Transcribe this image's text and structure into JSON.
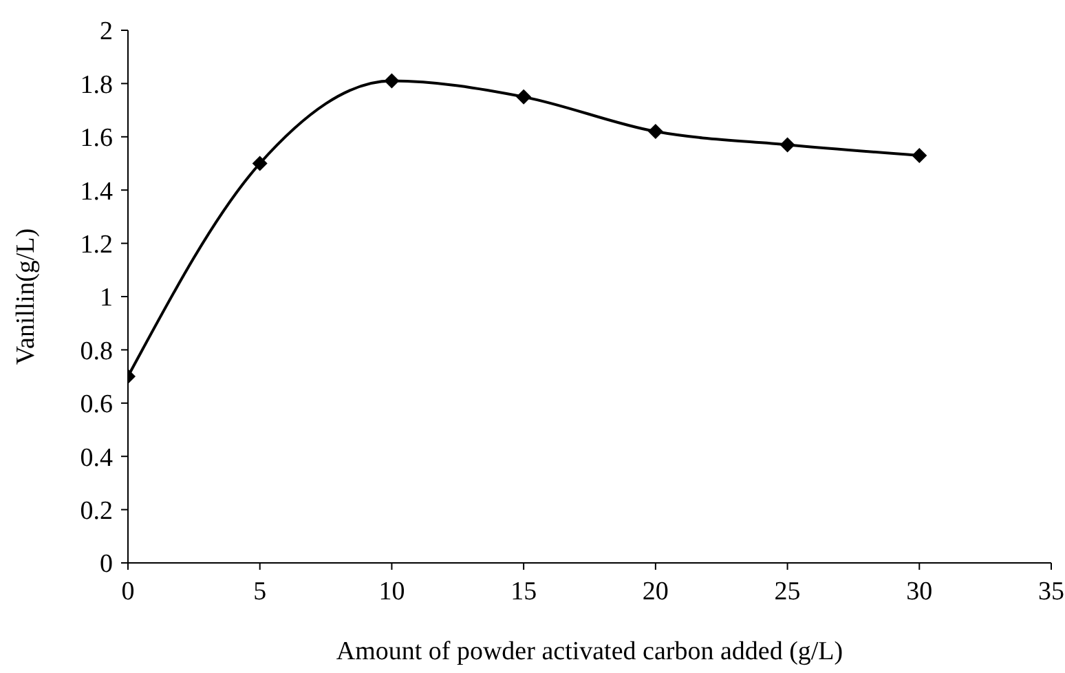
{
  "chart_data": {
    "type": "line",
    "xlabel": "Amount of powder activated carbon added (g/L)",
    "ylabel": "Vanillin(g/L)",
    "x": [
      0,
      5,
      10,
      15,
      20,
      25,
      30
    ],
    "series": [
      {
        "color": "#000000",
        "values": [
          0.7,
          1.5,
          1.81,
          1.75,
          1.62,
          1.57,
          1.53
        ]
      }
    ],
    "xlim": [
      0,
      35
    ],
    "xticks": [
      0,
      5,
      10,
      15,
      20,
      25,
      30,
      35
    ],
    "ylim": [
      0,
      2
    ],
    "yticks": [
      0,
      0.2,
      0.4,
      0.6,
      0.8,
      1,
      1.2,
      1.4,
      1.6,
      1.8,
      2
    ],
    "grid": false,
    "legend": false,
    "marker": "diamond",
    "line_style": "solid"
  }
}
